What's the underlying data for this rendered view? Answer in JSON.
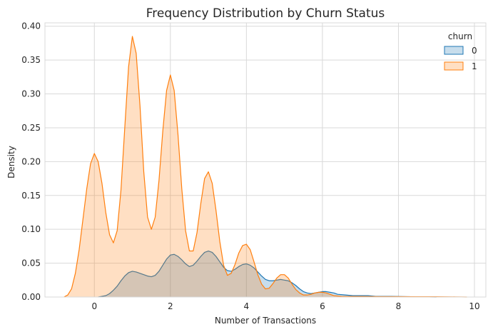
{
  "chart_data": {
    "type": "area",
    "title": "Frequency Distribution by Churn Status",
    "xlabel": "Number of Transactions",
    "ylabel": "Density",
    "xlim": [
      -1.3,
      10.3
    ],
    "ylim": [
      0,
      0.405
    ],
    "xticks": [
      0,
      2,
      4,
      6,
      8,
      10
    ],
    "yticks": [
      0.0,
      0.05,
      0.1,
      0.15,
      0.2,
      0.25,
      0.3,
      0.35,
      0.4
    ],
    "ytick_labels": [
      "0.00",
      "0.05",
      "0.10",
      "0.15",
      "0.20",
      "0.25",
      "0.30",
      "0.35",
      "0.40"
    ],
    "grid": true,
    "legend": {
      "title": "churn",
      "placement": "top-right"
    },
    "series": [
      {
        "name": "0",
        "color": "#1f77b4",
        "points": [
          [
            0.1,
            0.0
          ],
          [
            0.2,
            0.001
          ],
          [
            0.3,
            0.002
          ],
          [
            0.4,
            0.005
          ],
          [
            0.5,
            0.01
          ],
          [
            0.6,
            0.016
          ],
          [
            0.7,
            0.024
          ],
          [
            0.8,
            0.031
          ],
          [
            0.9,
            0.036
          ],
          [
            1.0,
            0.038
          ],
          [
            1.1,
            0.037
          ],
          [
            1.2,
            0.035
          ],
          [
            1.3,
            0.033
          ],
          [
            1.4,
            0.031
          ],
          [
            1.5,
            0.03
          ],
          [
            1.6,
            0.032
          ],
          [
            1.7,
            0.038
          ],
          [
            1.8,
            0.047
          ],
          [
            1.9,
            0.056
          ],
          [
            2.0,
            0.062
          ],
          [
            2.1,
            0.063
          ],
          [
            2.2,
            0.06
          ],
          [
            2.3,
            0.055
          ],
          [
            2.4,
            0.049
          ],
          [
            2.5,
            0.045
          ],
          [
            2.6,
            0.047
          ],
          [
            2.7,
            0.053
          ],
          [
            2.8,
            0.06
          ],
          [
            2.9,
            0.066
          ],
          [
            3.0,
            0.068
          ],
          [
            3.1,
            0.066
          ],
          [
            3.2,
            0.06
          ],
          [
            3.3,
            0.052
          ],
          [
            3.4,
            0.044
          ],
          [
            3.5,
            0.039
          ],
          [
            3.6,
            0.038
          ],
          [
            3.7,
            0.041
          ],
          [
            3.8,
            0.045
          ],
          [
            3.9,
            0.048
          ],
          [
            4.0,
            0.049
          ],
          [
            4.1,
            0.047
          ],
          [
            4.2,
            0.043
          ],
          [
            4.3,
            0.037
          ],
          [
            4.4,
            0.031
          ],
          [
            4.5,
            0.026
          ],
          [
            4.6,
            0.024
          ],
          [
            4.7,
            0.024
          ],
          [
            4.8,
            0.025
          ],
          [
            4.9,
            0.026
          ],
          [
            5.0,
            0.025
          ],
          [
            5.1,
            0.024
          ],
          [
            5.2,
            0.021
          ],
          [
            5.3,
            0.017
          ],
          [
            5.4,
            0.012
          ],
          [
            5.5,
            0.008
          ],
          [
            5.6,
            0.006
          ],
          [
            5.7,
            0.005
          ],
          [
            5.8,
            0.006
          ],
          [
            5.9,
            0.007
          ],
          [
            6.0,
            0.008
          ],
          [
            6.1,
            0.008
          ],
          [
            6.2,
            0.007
          ],
          [
            6.3,
            0.006
          ],
          [
            6.4,
            0.004
          ],
          [
            6.6,
            0.003
          ],
          [
            6.8,
            0.002
          ],
          [
            7.0,
            0.002
          ],
          [
            7.2,
            0.002
          ],
          [
            7.4,
            0.001
          ],
          [
            7.8,
            0.001
          ],
          [
            8.2,
            0.0005
          ],
          [
            8.6,
            0.0002
          ],
          [
            9.0,
            0.0
          ]
        ]
      },
      {
        "name": "1",
        "color": "#ff7f0e",
        "points": [
          [
            -0.8,
            0.0
          ],
          [
            -0.7,
            0.003
          ],
          [
            -0.6,
            0.012
          ],
          [
            -0.5,
            0.035
          ],
          [
            -0.4,
            0.07
          ],
          [
            -0.3,
            0.115
          ],
          [
            -0.2,
            0.16
          ],
          [
            -0.1,
            0.197
          ],
          [
            0.0,
            0.212
          ],
          [
            0.1,
            0.2
          ],
          [
            0.2,
            0.168
          ],
          [
            0.3,
            0.125
          ],
          [
            0.4,
            0.092
          ],
          [
            0.5,
            0.08
          ],
          [
            0.6,
            0.098
          ],
          [
            0.7,
            0.158
          ],
          [
            0.8,
            0.25
          ],
          [
            0.9,
            0.34
          ],
          [
            1.0,
            0.385
          ],
          [
            1.1,
            0.36
          ],
          [
            1.2,
            0.283
          ],
          [
            1.3,
            0.185
          ],
          [
            1.4,
            0.118
          ],
          [
            1.5,
            0.1
          ],
          [
            1.6,
            0.118
          ],
          [
            1.7,
            0.172
          ],
          [
            1.8,
            0.245
          ],
          [
            1.9,
            0.305
          ],
          [
            2.0,
            0.328
          ],
          [
            2.1,
            0.305
          ],
          [
            2.2,
            0.24
          ],
          [
            2.3,
            0.16
          ],
          [
            2.4,
            0.098
          ],
          [
            2.5,
            0.068
          ],
          [
            2.6,
            0.068
          ],
          [
            2.7,
            0.095
          ],
          [
            2.8,
            0.138
          ],
          [
            2.9,
            0.175
          ],
          [
            3.0,
            0.185
          ],
          [
            3.1,
            0.168
          ],
          [
            3.2,
            0.128
          ],
          [
            3.3,
            0.082
          ],
          [
            3.4,
            0.047
          ],
          [
            3.5,
            0.032
          ],
          [
            3.6,
            0.035
          ],
          [
            3.7,
            0.048
          ],
          [
            3.8,
            0.065
          ],
          [
            3.9,
            0.076
          ],
          [
            4.0,
            0.078
          ],
          [
            4.1,
            0.07
          ],
          [
            4.2,
            0.052
          ],
          [
            4.3,
            0.033
          ],
          [
            4.4,
            0.019
          ],
          [
            4.5,
            0.012
          ],
          [
            4.6,
            0.013
          ],
          [
            4.7,
            0.02
          ],
          [
            4.8,
            0.028
          ],
          [
            4.9,
            0.033
          ],
          [
            5.0,
            0.033
          ],
          [
            5.1,
            0.028
          ],
          [
            5.2,
            0.019
          ],
          [
            5.3,
            0.011
          ],
          [
            5.4,
            0.006
          ],
          [
            5.5,
            0.003
          ],
          [
            5.6,
            0.003
          ],
          [
            5.7,
            0.004
          ],
          [
            5.8,
            0.006
          ],
          [
            5.9,
            0.007
          ],
          [
            6.0,
            0.007
          ],
          [
            6.1,
            0.006
          ],
          [
            6.2,
            0.004
          ],
          [
            6.3,
            0.002
          ],
          [
            6.5,
            0.001
          ],
          [
            7.0,
            0.0008
          ],
          [
            7.5,
            0.0006
          ],
          [
            8.0,
            0.0005
          ],
          [
            8.5,
            0.0004
          ],
          [
            9.0,
            0.0004
          ],
          [
            9.5,
            0.0002
          ],
          [
            9.8,
            0.0
          ]
        ]
      }
    ]
  }
}
